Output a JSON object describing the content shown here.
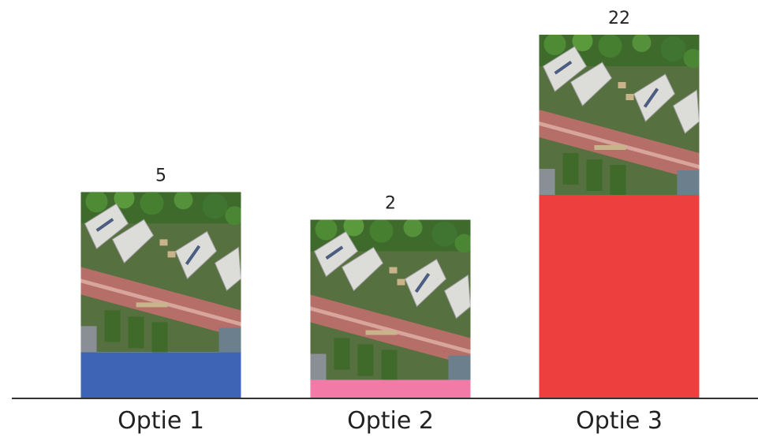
{
  "chart_data": {
    "type": "bar",
    "categories": [
      "Optie 1",
      "Optie 2",
      "Optie 3"
    ],
    "values": [
      5,
      2,
      22
    ],
    "colors": [
      "#3e64b6",
      "#f27aa6",
      "#ee3f3f"
    ]
  }
}
